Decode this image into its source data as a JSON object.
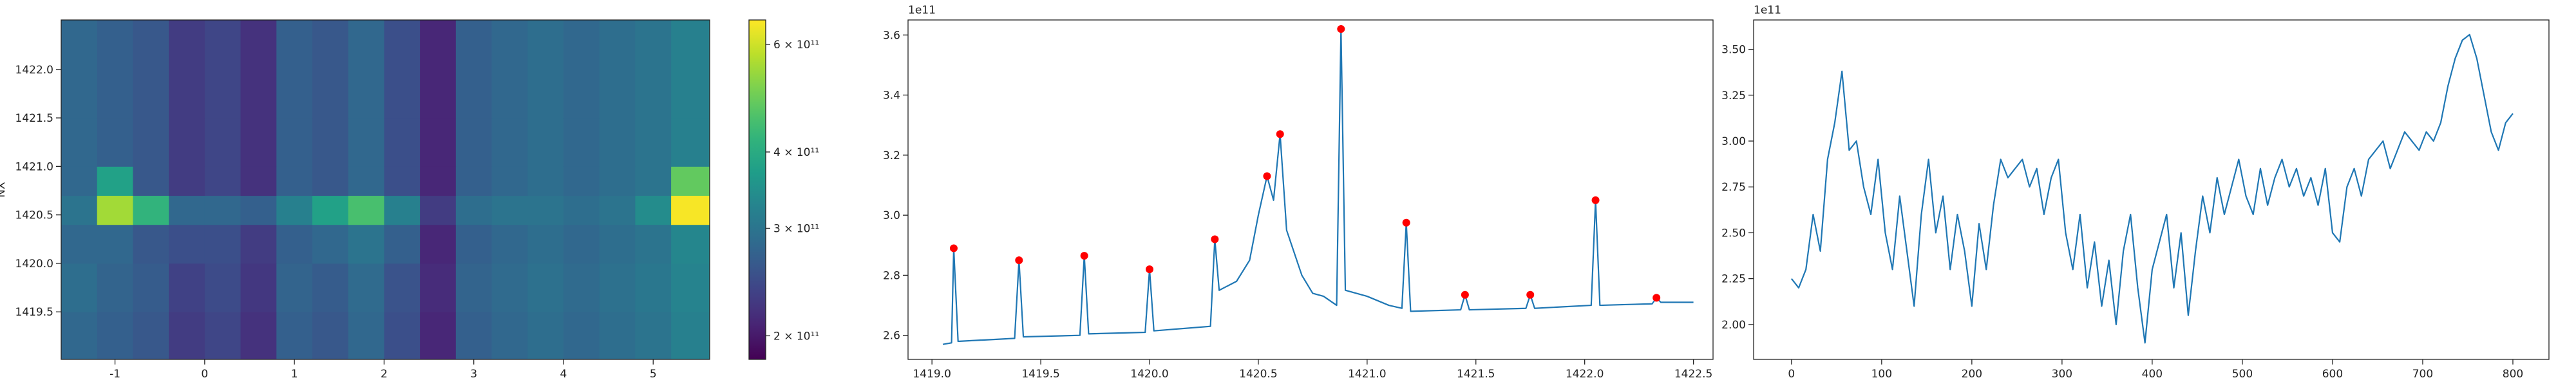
{
  "chart_data": [
    {
      "type": "heatmap",
      "ylabel": "NX",
      "xbins": [
        -1.6,
        -1.2,
        -0.8,
        -0.4,
        0,
        0.4,
        0.8,
        1.2,
        1.6,
        2.0,
        2.4,
        2.8,
        3.2,
        3.6,
        4.0,
        4.4,
        4.8,
        5.2,
        5.63
      ],
      "ybins": [
        1419.01,
        1419.5,
        1420.0,
        1420.4,
        1420.7,
        1421.0,
        1421.5,
        1422.0,
        1422.51
      ],
      "values": [
        [
          280000000000.0,
          270000000000.0,
          260000000000.0,
          230000000000.0,
          240000000000.0,
          220000000000.0,
          270000000000.0,
          260000000000.0,
          280000000000.0,
          250000000000.0,
          210000000000.0,
          270000000000.0,
          280000000000.0,
          290000000000.0,
          280000000000.0,
          290000000000.0,
          300000000000.0,
          320000000000.0
        ],
        [
          290000000000.0,
          275000000000.0,
          265000000000.0,
          235000000000.0,
          245000000000.0,
          225000000000.0,
          275000000000.0,
          265000000000.0,
          285000000000.0,
          255000000000.0,
          215000000000.0,
          275000000000.0,
          285000000000.0,
          295000000000.0,
          285000000000.0,
          295000000000.0,
          305000000000.0,
          325000000000.0
        ],
        [
          280000000000.0,
          280000000000.0,
          260000000000.0,
          250000000000.0,
          250000000000.0,
          230000000000.0,
          270000000000.0,
          280000000000.0,
          300000000000.0,
          270000000000.0,
          210000000000.0,
          270000000000.0,
          280000000000.0,
          290000000000.0,
          280000000000.0,
          290000000000.0,
          300000000000.0,
          330000000000.0
        ],
        [
          300000000000.0,
          550000000000.0,
          420000000000.0,
          280000000000.0,
          280000000000.0,
          270000000000.0,
          320000000000.0,
          380000000000.0,
          450000000000.0,
          320000000000.0,
          230000000000.0,
          290000000000.0,
          300000000000.0,
          300000000000.0,
          290000000000.0,
          300000000000.0,
          340000000000.0,
          650000000000.0
        ],
        [
          280000000000.0,
          380000000000.0,
          260000000000.0,
          230000000000.0,
          240000000000.0,
          220000000000.0,
          270000000000.0,
          260000000000.0,
          280000000000.0,
          250000000000.0,
          210000000000.0,
          270000000000.0,
          280000000000.0,
          290000000000.0,
          280000000000.0,
          290000000000.0,
          300000000000.0,
          480000000000.0
        ],
        [
          280000000000.0,
          270000000000.0,
          260000000000.0,
          230000000000.0,
          240000000000.0,
          220000000000.0,
          270000000000.0,
          260000000000.0,
          280000000000.0,
          250000000000.0,
          210000000000.0,
          270000000000.0,
          280000000000.0,
          290000000000.0,
          280000000000.0,
          290000000000.0,
          300000000000.0,
          320000000000.0
        ],
        [
          280000000000.0,
          270000000000.0,
          260000000000.0,
          230000000000.0,
          240000000000.0,
          220000000000.0,
          270000000000.0,
          260000000000.0,
          280000000000.0,
          250000000000.0,
          210000000000.0,
          270000000000.0,
          280000000000.0,
          290000000000.0,
          280000000000.0,
          290000000000.0,
          300000000000.0,
          320000000000.0
        ],
        [
          280000000000.0,
          270000000000.0,
          260000000000.0,
          230000000000.0,
          240000000000.0,
          220000000000.0,
          270000000000.0,
          260000000000.0,
          280000000000.0,
          250000000000.0,
          210000000000.0,
          270000000000.0,
          280000000000.0,
          290000000000.0,
          280000000000.0,
          290000000000.0,
          300000000000.0,
          320000000000.0
        ]
      ],
      "xlim": [
        -1.6,
        5.63
      ],
      "ylim": [
        1419.01,
        1422.51
      ],
      "xticks": [
        -1,
        0,
        1,
        2,
        3,
        4,
        5
      ],
      "yticks": [
        1419.5,
        {
          "value": 1420,
          "label": "1420.0"
        },
        1420.5,
        {
          "value": 1421,
          "label": "1421.0"
        },
        1421.5,
        {
          "value": 1422,
          "label": "1422.0"
        }
      ],
      "colorbar": {
        "scale": "log",
        "colormap": "viridis",
        "lim": [
          183000000000.0,
          658000000000.0
        ],
        "ticks": [
          {
            "value": 200000000000.0,
            "label": "2 × 10¹¹"
          },
          {
            "value": 300000000000.0,
            "label": "3 × 10¹¹"
          },
          {
            "value": 400000000000.0,
            "label": "4 × 10¹¹"
          },
          {
            "value": 600000000000.0,
            "label": "6 × 10¹¹"
          }
        ]
      }
    },
    {
      "type": "line",
      "offset_text": "1e11",
      "x": [
        1419.05,
        1419.09,
        1419.1,
        1419.12,
        1419.38,
        1419.4,
        1419.42,
        1419.68,
        1419.7,
        1419.72,
        1419.98,
        1420.0,
        1420.02,
        1420.28,
        1420.3,
        1420.32,
        1420.4,
        1420.46,
        1420.5,
        1420.54,
        1420.57,
        1420.6,
        1420.63,
        1420.7,
        1420.75,
        1420.8,
        1420.86,
        1420.88,
        1420.9,
        1421.0,
        1421.1,
        1421.16,
        1421.18,
        1421.2,
        1421.43,
        1421.45,
        1421.47,
        1421.73,
        1421.75,
        1421.77,
        1422.03,
        1422.05,
        1422.07,
        1422.31,
        1422.33,
        1422.35,
        1422.5
      ],
      "series": [
        {
          "color": "#1f77b4",
          "values": [
            2.57,
            2.575,
            2.89,
            2.58,
            2.59,
            2.85,
            2.595,
            2.6,
            2.865,
            2.605,
            2.61,
            2.82,
            2.615,
            2.63,
            2.92,
            2.75,
            2.78,
            2.85,
            3.0,
            3.13,
            3.05,
            3.27,
            2.95,
            2.8,
            2.74,
            2.73,
            2.7,
            3.62,
            2.75,
            2.73,
            2.7,
            2.69,
            2.975,
            2.68,
            2.685,
            2.735,
            2.685,
            2.69,
            2.735,
            2.69,
            2.7,
            3.05,
            2.7,
            2.705,
            2.725,
            2.71,
            2.71
          ]
        }
      ],
      "peaks": {
        "color": "#ff0000",
        "x": [
          1419.1,
          1419.4,
          1419.7,
          1420.0,
          1420.3,
          1420.54,
          1420.6,
          1420.88,
          1421.18,
          1421.45,
          1421.75,
          1422.05,
          1422.33
        ],
        "values": [
          2.89,
          2.85,
          2.865,
          2.82,
          2.92,
          3.13,
          3.27,
          3.62,
          2.975,
          2.735,
          2.735,
          3.05,
          2.725
        ]
      },
      "xlim": [
        1418.89,
        1422.59
      ],
      "ylim": [
        2.52,
        3.65
      ],
      "xticks": [
        {
          "value": 1419,
          "label": "1419.0"
        },
        1419.5,
        {
          "value": 1420,
          "label": "1420.0"
        },
        1420.5,
        {
          "value": 1421,
          "label": "1421.0"
        },
        1421.5,
        {
          "value": 1422,
          "label": "1422.0"
        },
        1422.5
      ],
      "yticks": [
        2.6,
        2.8,
        {
          "value": 3,
          "label": "3.0"
        },
        3.2,
        3.4,
        3.6
      ]
    },
    {
      "type": "line",
      "offset_text": "1e11",
      "x": [
        0,
        8,
        16,
        24,
        32,
        40,
        48,
        56,
        64,
        72,
        80,
        88,
        96,
        104,
        112,
        120,
        128,
        136,
        144,
        152,
        160,
        168,
        176,
        184,
        192,
        200,
        208,
        216,
        224,
        232,
        240,
        248,
        256,
        264,
        272,
        280,
        288,
        296,
        304,
        312,
        320,
        328,
        336,
        344,
        352,
        360,
        368,
        376,
        384,
        392,
        400,
        408,
        416,
        424,
        432,
        440,
        448,
        456,
        464,
        472,
        480,
        488,
        496,
        504,
        512,
        520,
        528,
        536,
        544,
        552,
        560,
        568,
        576,
        584,
        592,
        600,
        608,
        616,
        624,
        632,
        640,
        648,
        656,
        664,
        672,
        680,
        688,
        696,
        704,
        712,
        720,
        728,
        736,
        744,
        752,
        760,
        768,
        776,
        784,
        792,
        800
      ],
      "series": [
        {
          "color": "#1f77b4",
          "values": [
            2.25,
            2.2,
            2.3,
            2.6,
            2.4,
            2.9,
            3.1,
            3.38,
            2.95,
            3.0,
            2.75,
            2.6,
            2.9,
            2.5,
            2.3,
            2.7,
            2.4,
            2.1,
            2.6,
            2.9,
            2.5,
            2.7,
            2.3,
            2.6,
            2.4,
            2.1,
            2.55,
            2.3,
            2.65,
            2.9,
            2.8,
            2.85,
            2.9,
            2.75,
            2.85,
            2.6,
            2.8,
            2.9,
            2.5,
            2.3,
            2.6,
            2.2,
            2.45,
            2.1,
            2.35,
            2.0,
            2.4,
            2.6,
            2.2,
            1.9,
            2.3,
            2.45,
            2.6,
            2.2,
            2.5,
            2.05,
            2.4,
            2.7,
            2.5,
            2.8,
            2.6,
            2.75,
            2.9,
            2.7,
            2.6,
            2.85,
            2.65,
            2.8,
            2.9,
            2.75,
            2.85,
            2.7,
            2.8,
            2.65,
            2.85,
            2.5,
            2.45,
            2.75,
            2.85,
            2.7,
            2.9,
            2.95,
            3.0,
            2.85,
            2.95,
            3.05,
            3.0,
            2.95,
            3.05,
            3.0,
            3.1,
            3.3,
            3.45,
            3.55,
            3.58,
            3.45,
            3.25,
            3.05,
            2.95,
            3.1,
            3.15
          ]
        }
      ],
      "xlim": [
        -42,
        840
      ],
      "ylim": [
        1.81,
        3.66
      ],
      "xticks": [
        0,
        100,
        200,
        300,
        400,
        500,
        600,
        700,
        800
      ],
      "yticks": [
        {
          "value": 2,
          "label": "2.00"
        },
        2.25,
        {
          "value": 2.5,
          "label": "2.50"
        },
        2.75,
        {
          "value": 3,
          "label": "3.00"
        },
        3.25,
        {
          "value": 3.5,
          "label": "3.50"
        }
      ]
    }
  ]
}
